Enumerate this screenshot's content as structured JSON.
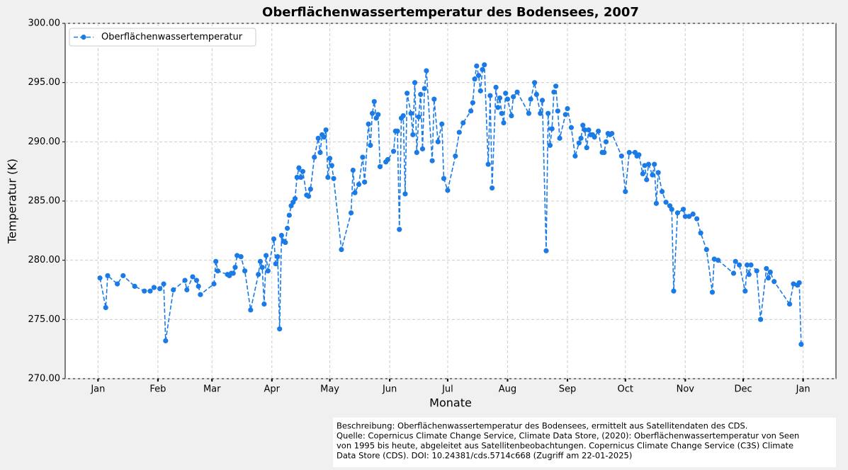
{
  "chart_data": {
    "type": "line",
    "title": "Oberflächenwassertemperatur des Bodensees, 2007",
    "x_label": "Monate",
    "y_label": "Temperatur (K)",
    "xlim": [
      -17,
      382
    ],
    "ylim": [
      270,
      300
    ],
    "xticks": [
      {
        "value": 0,
        "label": "Jan"
      },
      {
        "value": 31,
        "label": "Feb"
      },
      {
        "value": 59,
        "label": "Mar"
      },
      {
        "value": 90,
        "label": "Apr"
      },
      {
        "value": 120,
        "label": "May"
      },
      {
        "value": 151,
        "label": "Jun"
      },
      {
        "value": 181,
        "label": "Jul"
      },
      {
        "value": 212,
        "label": "Aug"
      },
      {
        "value": 243,
        "label": "Sep"
      },
      {
        "value": 273,
        "label": "Oct"
      },
      {
        "value": 304,
        "label": "Nov"
      },
      {
        "value": 334,
        "label": "Dec"
      },
      {
        "value": 365,
        "label": "Jan"
      }
    ],
    "yticks": [
      {
        "value": 270,
        "label": "270.00"
      },
      {
        "value": 275,
        "label": "275.00"
      },
      {
        "value": 280,
        "label": "280.00"
      },
      {
        "value": 285,
        "label": "285.00"
      },
      {
        "value": 290,
        "label": "290.00"
      },
      {
        "value": 295,
        "label": "295.00"
      },
      {
        "value": 300,
        "label": "300.00"
      }
    ],
    "grid": true,
    "legend_position": "upper left",
    "series": [
      {
        "name": "Oberflächenwassertemperatur",
        "color": "#1a7ae6",
        "x": [
          1,
          4,
          5,
          10,
          13,
          19,
          24,
          27,
          29,
          32,
          34,
          35,
          39,
          45,
          46,
          49,
          51,
          52,
          53,
          60,
          61,
          62,
          67,
          68,
          69,
          70,
          71,
          72,
          74,
          76,
          79,
          83,
          84,
          85,
          86,
          87,
          88,
          91,
          92,
          93,
          94,
          95,
          96,
          97,
          98,
          99,
          100,
          101,
          102,
          103,
          104,
          105,
          106,
          108,
          109,
          110,
          112,
          114,
          115,
          116,
          117,
          118,
          119,
          120,
          121,
          122,
          126,
          131,
          132,
          133,
          135,
          137,
          138,
          140,
          141,
          142,
          143,
          144,
          145,
          146,
          149,
          150,
          153,
          154,
          155,
          156,
          157,
          158,
          159,
          160,
          162,
          163,
          164,
          165,
          166,
          167,
          168,
          169,
          170,
          173,
          174,
          176,
          178,
          179,
          181,
          185,
          187,
          189,
          193,
          194,
          195,
          196,
          197,
          198,
          199,
          200,
          202,
          203,
          204,
          206,
          207,
          208,
          209,
          210,
          211,
          212,
          214,
          215,
          217,
          223,
          224,
          226,
          227,
          229,
          230,
          232,
          233,
          234,
          235,
          236,
          237,
          238,
          239,
          242,
          243,
          245,
          247,
          249,
          250,
          251,
          252,
          253,
          254,
          255,
          256,
          257,
          259,
          261,
          262,
          263,
          264,
          265,
          266,
          271,
          273,
          275,
          278,
          279,
          280,
          282,
          283,
          284,
          285,
          287,
          288,
          289,
          290,
          292,
          294,
          296,
          297,
          298,
          300,
          303,
          304,
          306,
          308,
          310,
          312,
          315,
          318,
          319,
          321,
          329,
          330,
          332,
          335,
          336,
          337,
          338,
          341,
          343,
          346,
          347,
          348,
          350,
          358,
          360,
          362,
          363,
          364
        ],
        "values": [
          278.5,
          276.0,
          278.7,
          278.0,
          278.7,
          277.8,
          277.4,
          277.4,
          277.7,
          277.6,
          278.0,
          273.2,
          277.5,
          278.3,
          277.5,
          278.6,
          278.3,
          277.8,
          277.1,
          278.0,
          279.9,
          279.1,
          278.8,
          278.7,
          278.9,
          278.9,
          279.4,
          280.4,
          280.3,
          279.1,
          275.8,
          278.8,
          279.9,
          279.4,
          276.3,
          280.4,
          279.1,
          281.8,
          279.7,
          280.3,
          274.2,
          282.1,
          281.6,
          281.5,
          282.7,
          283.8,
          284.6,
          284.9,
          285.2,
          287.0,
          287.8,
          287.0,
          287.5,
          285.5,
          285.4,
          286.0,
          288.7,
          290.3,
          289.1,
          290.6,
          290.4,
          291.0,
          287.0,
          288.6,
          288.0,
          286.9,
          280.9,
          284.0,
          287.6,
          285.7,
          286.4,
          288.7,
          286.6,
          291.5,
          289.7,
          292.4,
          293.4,
          292.0,
          292.3,
          287.9,
          288.3,
          288.5,
          289.2,
          290.9,
          290.9,
          282.6,
          292.0,
          292.2,
          285.6,
          294.1,
          292.4,
          290.6,
          295.0,
          289.1,
          292.1,
          294.0,
          289.4,
          294.5,
          296.0,
          288.4,
          293.6,
          290.0,
          291.5,
          286.9,
          285.9,
          288.8,
          290.8,
          291.6,
          292.6,
          293.3,
          295.3,
          296.4,
          295.6,
          294.3,
          296.1,
          296.5,
          288.1,
          293.9,
          286.1,
          294.6,
          292.9,
          293.7,
          292.4,
          291.6,
          294.1,
          293.6,
          292.2,
          293.8,
          294.2,
          292.4,
          293.6,
          295.0,
          294.0,
          292.4,
          293.5,
          280.8,
          292.4,
          289.7,
          291.1,
          294.2,
          294.7,
          292.6,
          290.3,
          292.3,
          292.8,
          291.2,
          288.8,
          289.9,
          290.3,
          291.4,
          291.0,
          289.5,
          291.0,
          290.6,
          290.6,
          290.4,
          290.9,
          289.1,
          289.1,
          290.0,
          290.7,
          290.6,
          290.7,
          288.8,
          285.8,
          289.1,
          289.1,
          288.8,
          288.9,
          287.3,
          288.0,
          286.8,
          288.1,
          287.2,
          288.1,
          284.8,
          287.4,
          285.8,
          284.9,
          284.6,
          284.3,
          277.4,
          284.0,
          284.3,
          283.7,
          283.7,
          283.9,
          283.5,
          282.3,
          280.9,
          277.3,
          280.1,
          280.0,
          278.9,
          279.9,
          279.6,
          277.4,
          279.6,
          278.8,
          279.6,
          279.1,
          275.0,
          279.3,
          278.5,
          279.0,
          278.2,
          276.3,
          278.0,
          277.9,
          278.1,
          272.9
        ]
      }
    ],
    "footnote": [
      "Beschreibung: Oberflächenwassertemperatur des Bodensees, ermittelt aus Satellitendaten des CDS.",
      "Quelle: Copernicus Climate Change Service, Climate Data Store, (2020): Oberflächenwassertemperatur von Seen",
      "von 1995 bis heute, abgeleitet aus Satellitenbeobachtungen. Copernicus Climate Change Service (C3S) Climate",
      "Data Store (CDS). DOI: 10.24381/cds.5714c668 (Zugriff am 22-01-2025)"
    ]
  }
}
